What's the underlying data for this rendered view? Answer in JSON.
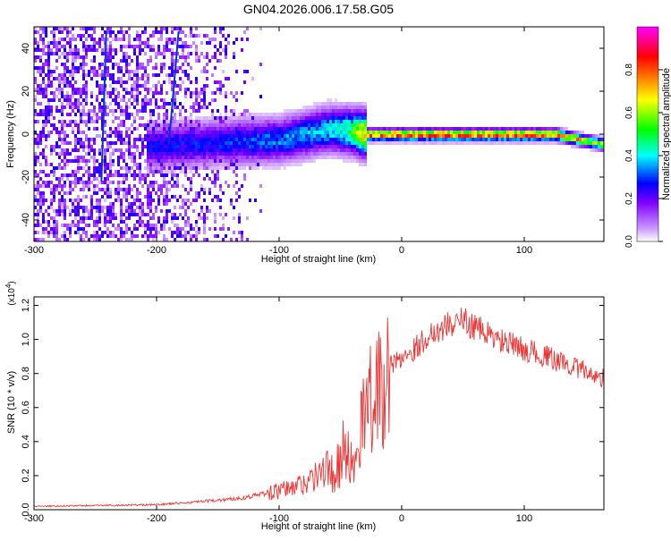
{
  "title": "GN04.2026.006.17.58.G05",
  "chart_data": [
    {
      "type": "heatmap",
      "xlabel": "Height of straight line (km)",
      "ylabel": "Frequency (Hz)",
      "xlim": [
        -300,
        165
      ],
      "ylim": [
        -50,
        50
      ],
      "xticks": [
        "-300",
        "-200",
        "-100",
        "0",
        "100"
      ],
      "yticks": [
        "-40",
        "-20",
        "0",
        "20",
        "40"
      ],
      "colorbar": {
        "label": "Normalized spectral amplitude",
        "range": [
          0,
          1
        ],
        "ticks": [
          "0.0",
          "0.2",
          "0.4",
          "0.6",
          "0.8"
        ],
        "colors": [
          "#ffffff",
          "#cc99ff",
          "#8000ff",
          "#0000ff",
          "#00ffff",
          "#00ff00",
          "#ffff00",
          "#ff8000",
          "#ff0000",
          "#ff00ff"
        ]
      },
      "ridge": [
        {
          "x": -200,
          "y": -5,
          "amp": 0.3
        },
        {
          "x": -150,
          "y": -3,
          "amp": 0.32
        },
        {
          "x": -100,
          "y": -2,
          "amp": 0.38
        },
        {
          "x": -60,
          "y": 3,
          "amp": 0.45
        },
        {
          "x": -40,
          "y": 2,
          "amp": 0.6
        },
        {
          "x": -30,
          "y": 0.5,
          "amp": 0.9
        },
        {
          "x": 0,
          "y": 0.5,
          "amp": 0.95
        },
        {
          "x": 50,
          "y": 0.5,
          "amp": 0.95
        },
        {
          "x": 100,
          "y": 0.5,
          "amp": 0.95
        },
        {
          "x": 125,
          "y": 0.5,
          "amp": 0.85
        },
        {
          "x": 145,
          "y": -2,
          "amp": 0.8
        },
        {
          "x": 165,
          "y": -4,
          "amp": 0.7
        }
      ]
    },
    {
      "type": "line",
      "xlabel": "Height of straight line (km)",
      "ylabel": "SNR (10 * v/v)",
      "multiplier": "(x10",
      "multiplier_exp": "4",
      "multiplier_close": ")",
      "xlim": [
        -300,
        165
      ],
      "ylim": [
        0,
        1.25
      ],
      "xticks": [
        "-300",
        "-200",
        "-100",
        "0",
        "100"
      ],
      "yticks": [
        "0.0",
        "0.2",
        "0.4",
        "0.6",
        "0.8",
        "1.0",
        "1.2"
      ],
      "color": "#ee3333",
      "x": [
        -300,
        -250,
        -200,
        -160,
        -130,
        -110,
        -90,
        -70,
        -55,
        -45,
        -35,
        -25,
        -15,
        -5,
        10,
        25,
        40,
        50,
        60,
        80,
        100,
        120,
        140,
        155,
        165
      ],
      "y": [
        0.02,
        0.025,
        0.03,
        0.05,
        0.07,
        0.1,
        0.13,
        0.2,
        0.3,
        0.4,
        0.55,
        0.7,
        0.8,
        0.88,
        0.95,
        1.05,
        1.1,
        1.12,
        1.08,
        1.0,
        0.95,
        0.9,
        0.85,
        0.8,
        0.78
      ]
    }
  ]
}
